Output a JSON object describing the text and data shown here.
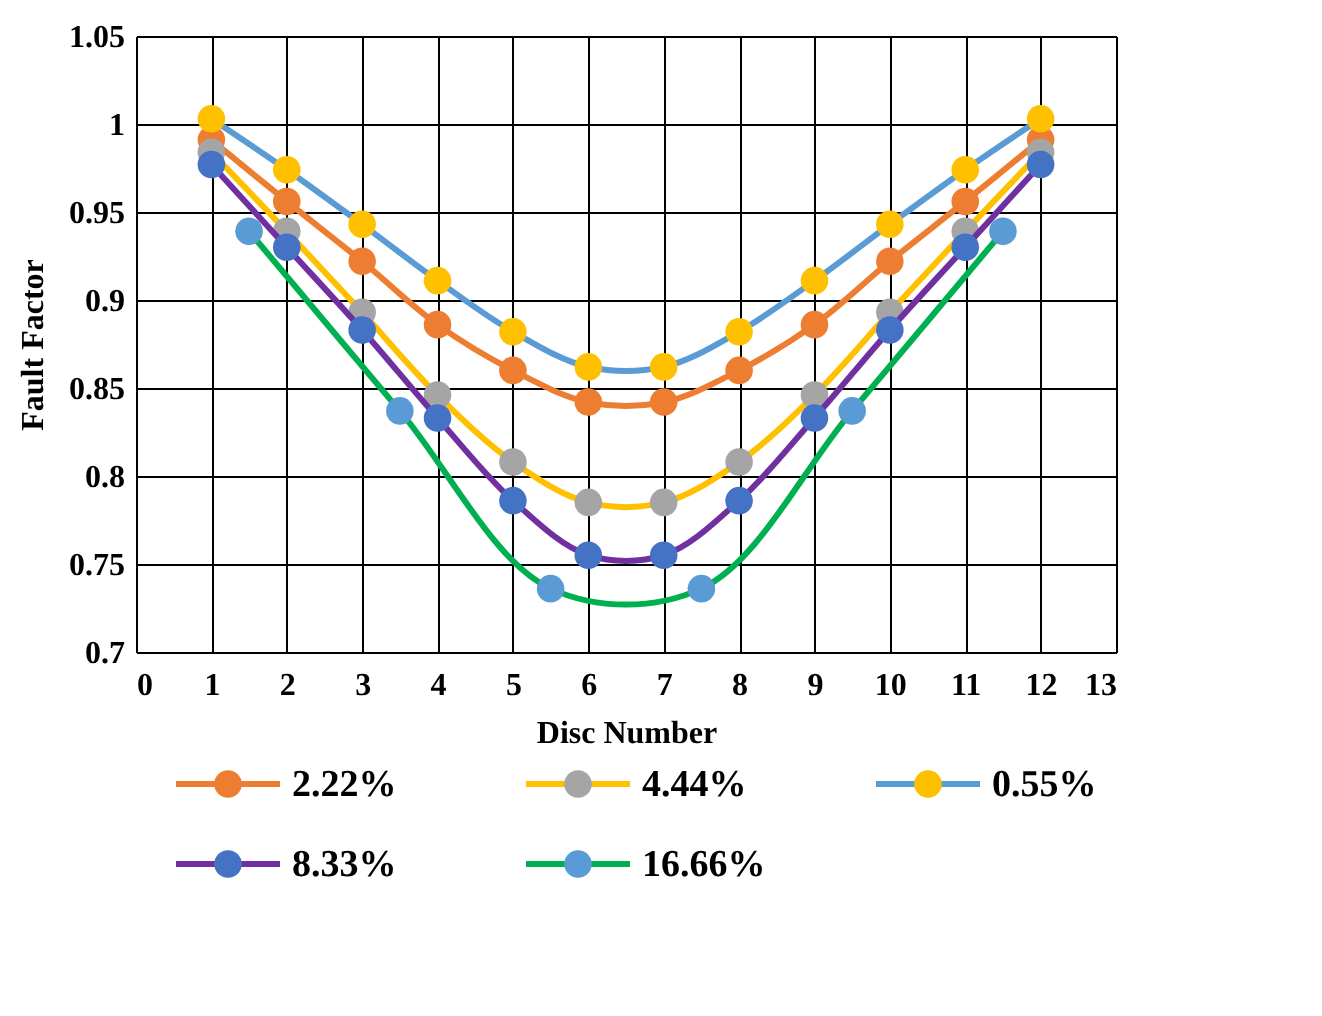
{
  "chart_data": {
    "type": "line",
    "xlabel": "Disc Number",
    "ylabel": "Fault Factor",
    "xlim": [
      0,
      13
    ],
    "xticks": [
      0,
      1,
      2,
      3,
      4,
      5,
      6,
      7,
      8,
      9,
      10,
      11,
      12,
      13
    ],
    "ylim": [
      0.7,
      1.05
    ],
    "yticks": [
      0.7,
      0.75,
      0.8,
      0.85,
      0.9,
      0.95,
      1,
      1.05
    ],
    "grid": true,
    "legend": "bottom",
    "marker": "circle",
    "line_style": "solid",
    "series": [
      {
        "name": "2.22%",
        "color": "#ed7d31",
        "colors": [
          "#ed7d31",
          "#ed7d31",
          "#ed7d31",
          "#ed7d31",
          "#ed7d31",
          "#ed7d31",
          "#ed7d31",
          "#ed7d31",
          "#ed7d31",
          "#ed7d31",
          "#ed7d31",
          "#ed7d31"
        ],
        "x": [
          1,
          2,
          3,
          4,
          5,
          6,
          7,
          8,
          9,
          10,
          11,
          12
        ],
        "values": [
          0.991,
          0.956,
          0.922,
          0.886,
          0.86,
          0.842,
          0.842,
          0.86,
          0.886,
          0.922,
          0.956,
          0.991
        ]
      },
      {
        "name": "4.44%",
        "color": "#ffc000",
        "colors": [
          "#a5a5a5",
          "#a5a5a5",
          "#a5a5a5",
          "#a5a5a5",
          "#a5a5a5",
          "#a5a5a5",
          "#a5a5a5",
          "#a5a5a5",
          "#a5a5a5",
          "#a5a5a5",
          "#a5a5a5",
          "#a5a5a5"
        ],
        "x": [
          1,
          2,
          3,
          4,
          5,
          6,
          7,
          8,
          9,
          10,
          11,
          12
        ],
        "values": [
          0.984,
          0.939,
          0.893,
          0.846,
          0.808,
          0.785,
          0.785,
          0.808,
          0.846,
          0.893,
          0.939,
          0.984
        ]
      },
      {
        "name": "0.55%",
        "color": "#5b9bd5",
        "colors": [
          "#ffc000",
          "#ffc000",
          "#ffc000",
          "#ffc000",
          "#ffc000",
          "#ffc000",
          "#ffc000",
          "#ffc000",
          "#ffc000",
          "#ffc000",
          "#ffc000",
          "#ffc000"
        ],
        "x": [
          1,
          2,
          3,
          4,
          5,
          6,
          7,
          8,
          9,
          10,
          11,
          12
        ],
        "values": [
          1.003,
          0.974,
          0.943,
          0.911,
          0.882,
          0.862,
          0.862,
          0.882,
          0.911,
          0.943,
          0.974,
          1.003
        ]
      },
      {
        "name": "8.33%",
        "color": "#7030a0",
        "colors": [
          "#4472c4",
          "#4472c4",
          "#4472c4",
          "#4472c4",
          "#4472c4",
          "#4472c4",
          "#4472c4",
          "#4472c4",
          "#4472c4",
          "#4472c4",
          "#4472c4",
          "#4472c4"
        ],
        "x": [
          1,
          2,
          3,
          4,
          5,
          6,
          7,
          8,
          9,
          10,
          11,
          12
        ],
        "values": [
          0.977,
          0.93,
          0.883,
          0.833,
          0.786,
          0.755,
          0.755,
          0.786,
          0.833,
          0.883,
          0.93,
          0.977
        ]
      },
      {
        "name": "16.66%",
        "color": "#00b050",
        "colors": [
          "#5b9bd5",
          "#5b9bd5",
          "#5b9bd5",
          "#5b9bd5",
          "#5b9bd5",
          "#5b9bd5"
        ],
        "x": [
          1.5,
          3.5,
          5.5,
          7.5,
          9.5,
          11.5
        ],
        "values": [
          0.939,
          0.837,
          0.736,
          0.736,
          0.837,
          0.939
        ]
      }
    ]
  }
}
